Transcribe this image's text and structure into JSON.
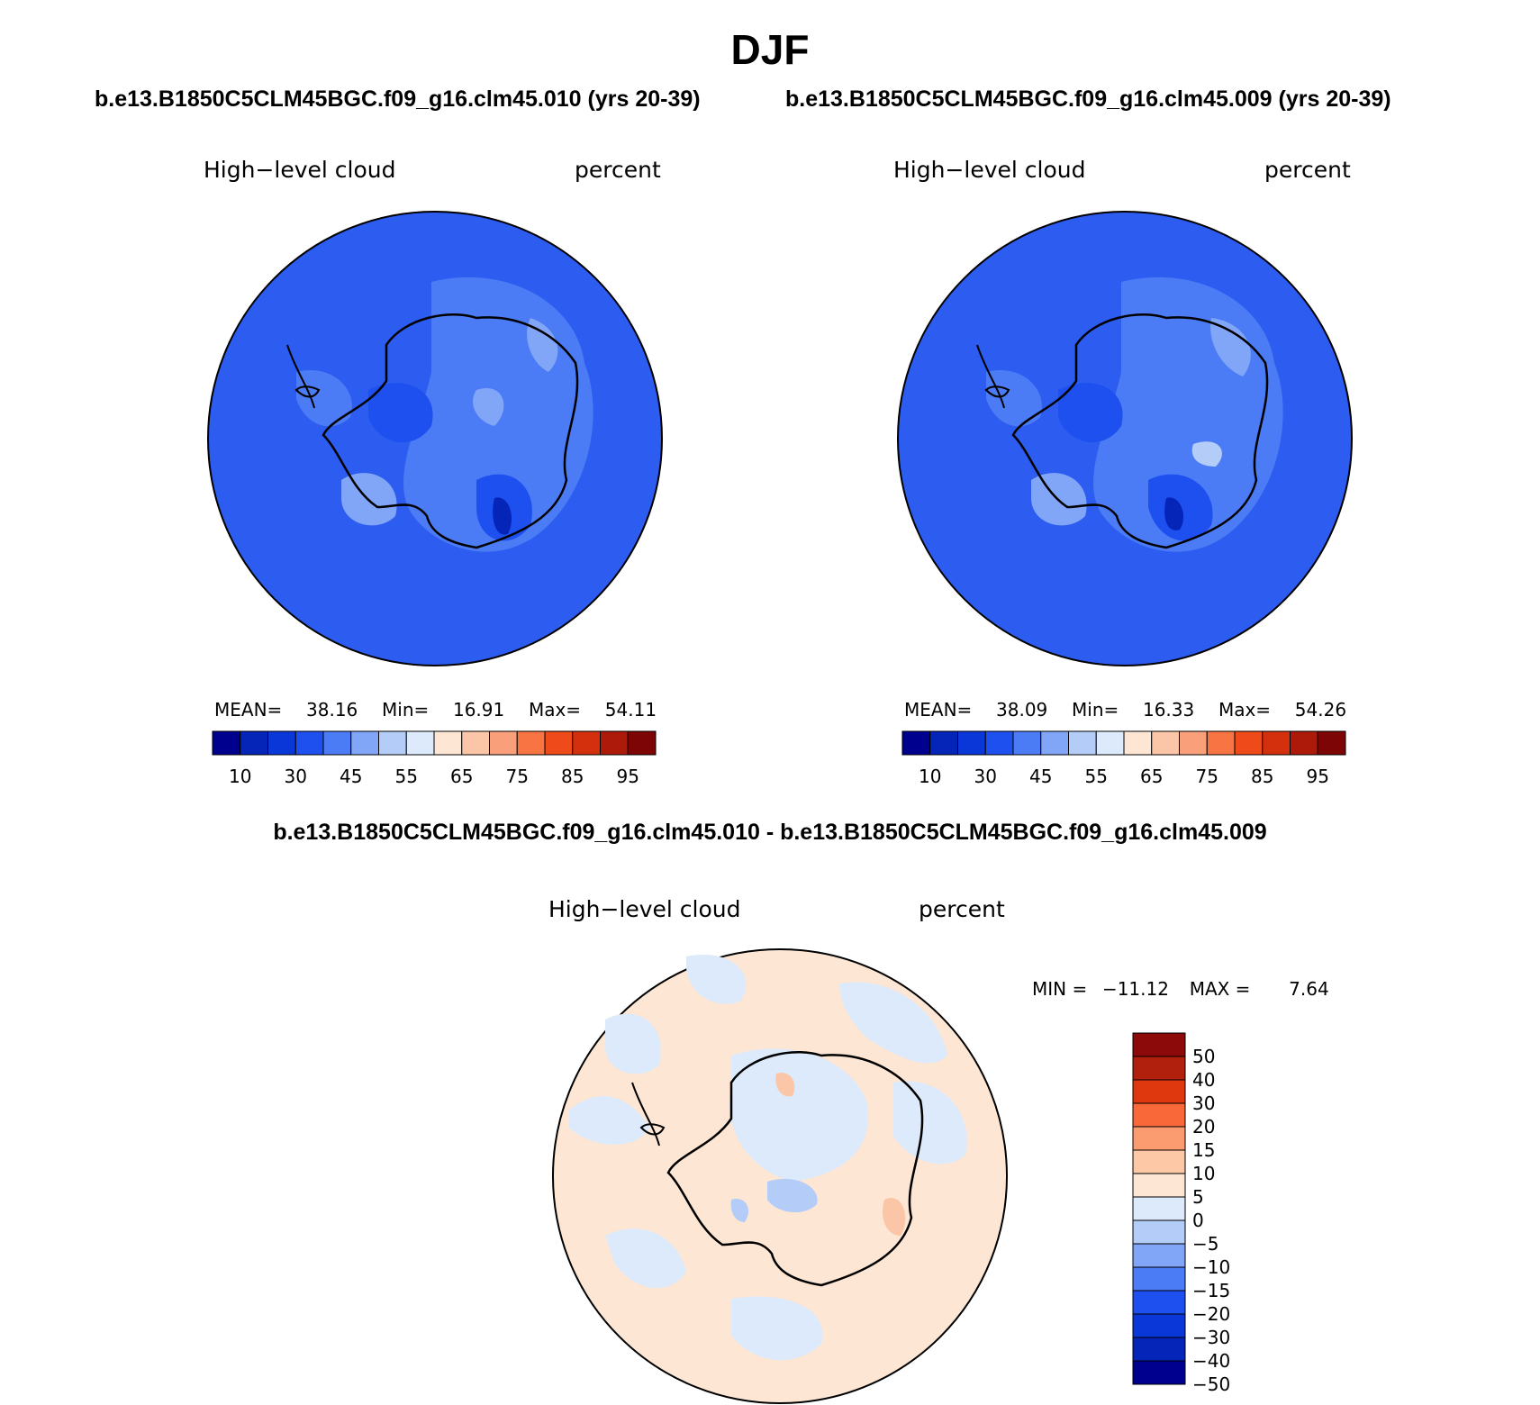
{
  "figure": {
    "title": "DJF",
    "left_case": "b.e13.B1850C5CLM45BGC.f09_g16.clm45.010 (yrs 20-39)",
    "right_case": "b.e13.B1850C5CLM45BGC.f09_g16.clm45.009 (yrs 20-39)",
    "diff_title": "b.e13.B1850C5CLM45BGC.f09_g16.clm45.010 - b.e13.B1850C5CLM45BGC.f09_g16.clm45.009"
  },
  "panels": [
    {
      "variable": "High−level cloud",
      "units": "percent",
      "mean_label": "MEAN=",
      "mean": "38.16",
      "min_label": "Min=",
      "min": "16.91",
      "max_label": "Max=",
      "max": "54.11",
      "background_color": "#2c5cf0"
    },
    {
      "variable": "High−level cloud",
      "units": "percent",
      "mean_label": "MEAN=",
      "mean": "38.09",
      "min_label": "Min=",
      "min": "16.33",
      "max_label": "Max=",
      "max": "54.26",
      "background_color": "#2c5cf0"
    }
  ],
  "abs_colorbar": {
    "colors": [
      "#00008f",
      "#0524b8",
      "#0a38d8",
      "#1e50f0",
      "#4b7cf5",
      "#82a6f7",
      "#b4ccf8",
      "#dceafb",
      "#fde6d4",
      "#fbc6a8",
      "#f9a07a",
      "#f87443",
      "#ee4a1a",
      "#d4300e",
      "#ad1a0a",
      "#7e0505"
    ],
    "tick_labels": [
      "10",
      "30",
      "45",
      "55",
      "65",
      "75",
      "85",
      "95"
    ]
  },
  "diff_panel": {
    "variable": "High−level cloud",
    "units": "percent",
    "min_label": "MIN =",
    "min": "−11.12",
    "max_label": "MAX =",
    "max": "7.64",
    "background_color": "#fde6d4",
    "colorbar": {
      "colors_top_to_bottom": [
        "#8c0a0a",
        "#b0200c",
        "#e0380e",
        "#f86838",
        "#fb9c70",
        "#fcc8a6",
        "#fde6d4",
        "#dceafb",
        "#b4ccf8",
        "#82a6f7",
        "#4b7cf5",
        "#1e50f0",
        "#0a38d8",
        "#0524b8",
        "#00008f"
      ],
      "tick_labels_top_to_bottom": [
        "50",
        "40",
        "30",
        "20",
        "15",
        "10",
        "5",
        "0",
        "−5",
        "−10",
        "−15",
        "−20",
        "−30",
        "−40",
        "−50"
      ]
    }
  }
}
